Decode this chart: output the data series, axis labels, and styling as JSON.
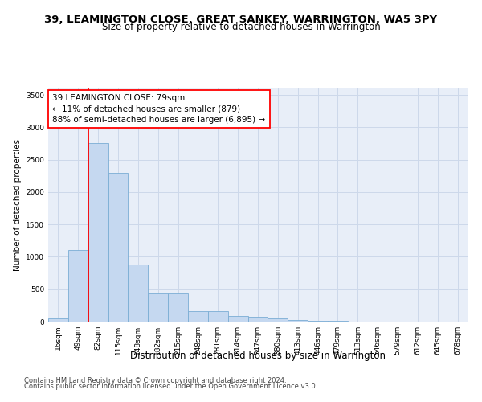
{
  "title": "39, LEAMINGTON CLOSE, GREAT SANKEY, WARRINGTON, WA5 3PY",
  "subtitle": "Size of property relative to detached houses in Warrington",
  "xlabel": "Distribution of detached houses by size in Warrington",
  "ylabel": "Number of detached properties",
  "categories": [
    "16sqm",
    "49sqm",
    "82sqm",
    "115sqm",
    "148sqm",
    "182sqm",
    "215sqm",
    "248sqm",
    "281sqm",
    "314sqm",
    "347sqm",
    "380sqm",
    "413sqm",
    "446sqm",
    "479sqm",
    "513sqm",
    "546sqm",
    "579sqm",
    "612sqm",
    "645sqm",
    "678sqm"
  ],
  "values": [
    50,
    1100,
    2750,
    2300,
    880,
    430,
    430,
    160,
    160,
    90,
    70,
    55,
    30,
    12,
    10,
    5,
    3,
    2,
    1,
    1,
    0
  ],
  "bar_color": "#c5d8f0",
  "bar_edge_color": "#7aadd4",
  "grid_color": "#cdd8ea",
  "background_color": "#e8eef8",
  "annotation_line1": "39 LEAMINGTON CLOSE: 79sqm",
  "annotation_line2": "← 11% of detached houses are smaller (879)",
  "annotation_line3": "88% of semi-detached houses are larger (6,895) →",
  "red_line_x": 1.5,
  "ylim": [
    0,
    3600
  ],
  "yticks": [
    0,
    500,
    1000,
    1500,
    2000,
    2500,
    3000,
    3500
  ],
  "footer1": "Contains HM Land Registry data © Crown copyright and database right 2024.",
  "footer2": "Contains public sector information licensed under the Open Government Licence v3.0.",
  "title_fontsize": 9.5,
  "subtitle_fontsize": 8.5,
  "xlabel_fontsize": 8.5,
  "ylabel_fontsize": 7.5,
  "tick_fontsize": 6.5,
  "annotation_fontsize": 7.5,
  "footer_fontsize": 6.0
}
